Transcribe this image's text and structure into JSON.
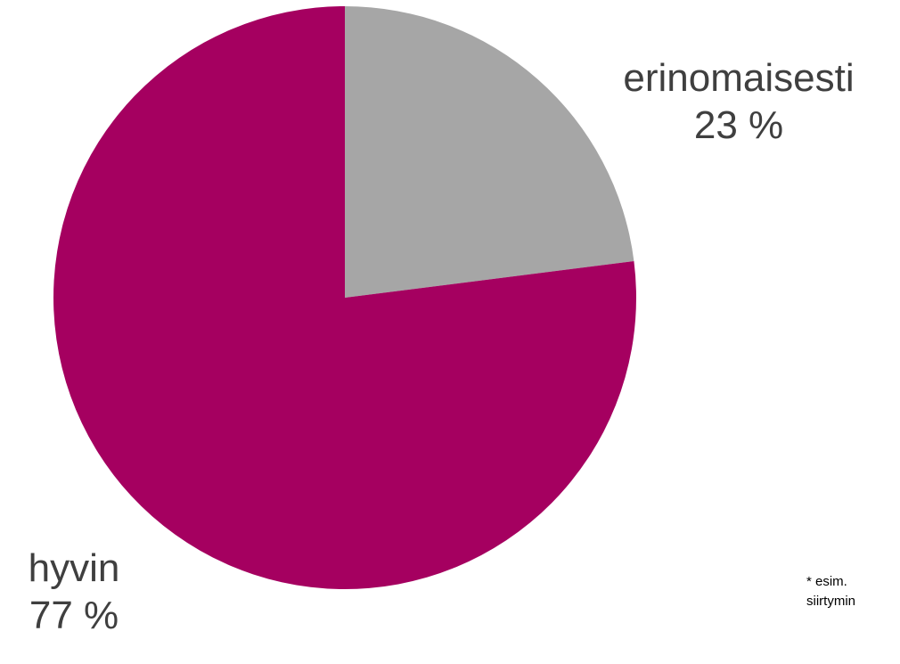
{
  "chart_data": {
    "type": "pie",
    "title": "",
    "slices": [
      {
        "label": "erinomaisesti",
        "value": 23,
        "display": "23 %",
        "color": "#a6a6a6"
      },
      {
        "label": "hyvin",
        "value": 77,
        "display": "77 %",
        "color": "#a50060"
      }
    ],
    "start_angle": "12 o'clock",
    "direction": "clockwise"
  },
  "footnote": {
    "line1": "* esim.",
    "line2": "siirtymin"
  }
}
